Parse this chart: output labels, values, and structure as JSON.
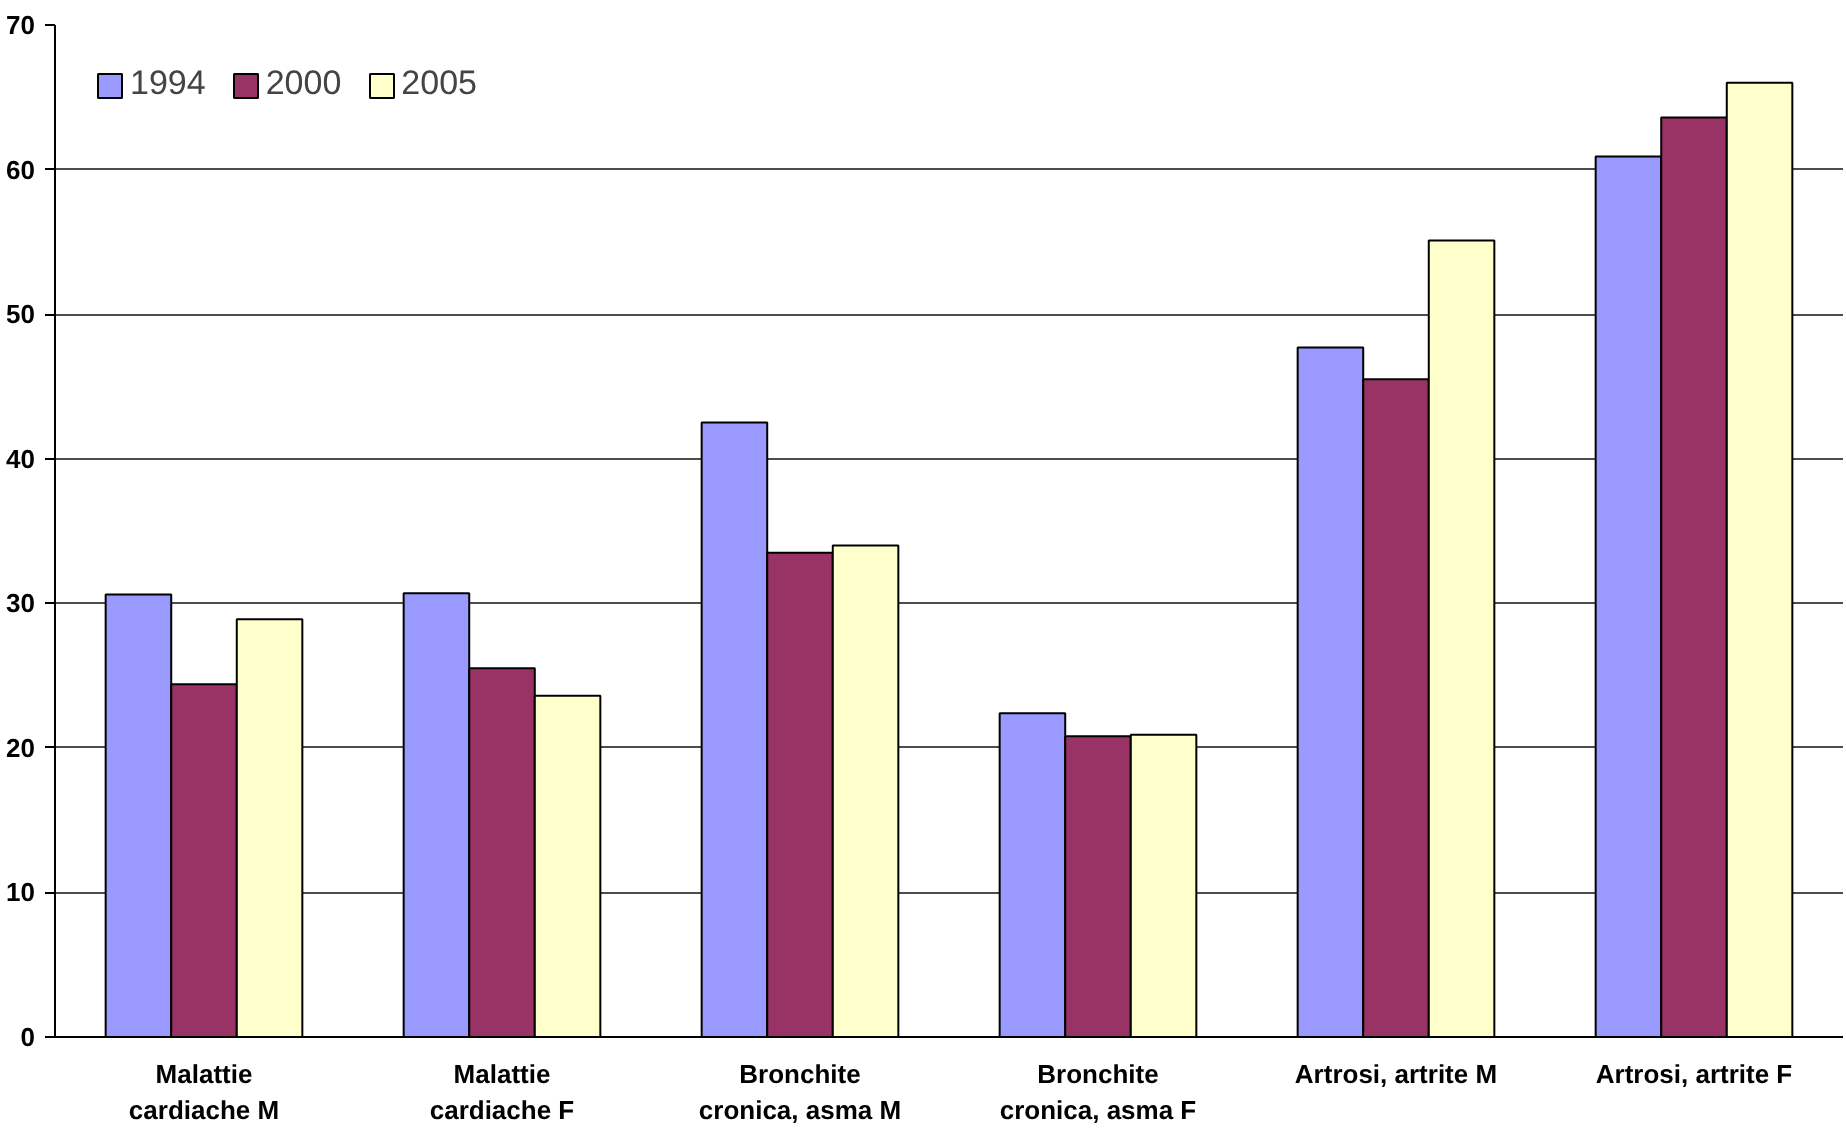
{
  "chart_data": {
    "type": "bar",
    "categories": [
      "Malattie\ncardiache M",
      "Malattie\ncardiache F",
      "Bronchite\ncronica, asma M",
      "Bronchite\ncronica, asma F",
      "Artrosi, artrite M",
      "Artrosi, artrite F"
    ],
    "series": [
      {
        "name": "1994",
        "color": "#9999ff",
        "values": [
          30.6,
          30.7,
          42.5,
          22.4,
          47.7,
          60.9
        ]
      },
      {
        "name": "2000",
        "color": "#993366",
        "values": [
          24.4,
          25.5,
          33.5,
          20.8,
          45.5,
          63.6
        ]
      },
      {
        "name": "2005",
        "color": "#ffffcc",
        "values": [
          28.9,
          23.6,
          34.0,
          20.9,
          55.1,
          66.0
        ]
      }
    ],
    "ylim": [
      0,
      70
    ],
    "yticks": [
      0,
      10,
      20,
      30,
      40,
      50,
      60,
      70
    ],
    "grid": "y",
    "legend": "top left"
  }
}
